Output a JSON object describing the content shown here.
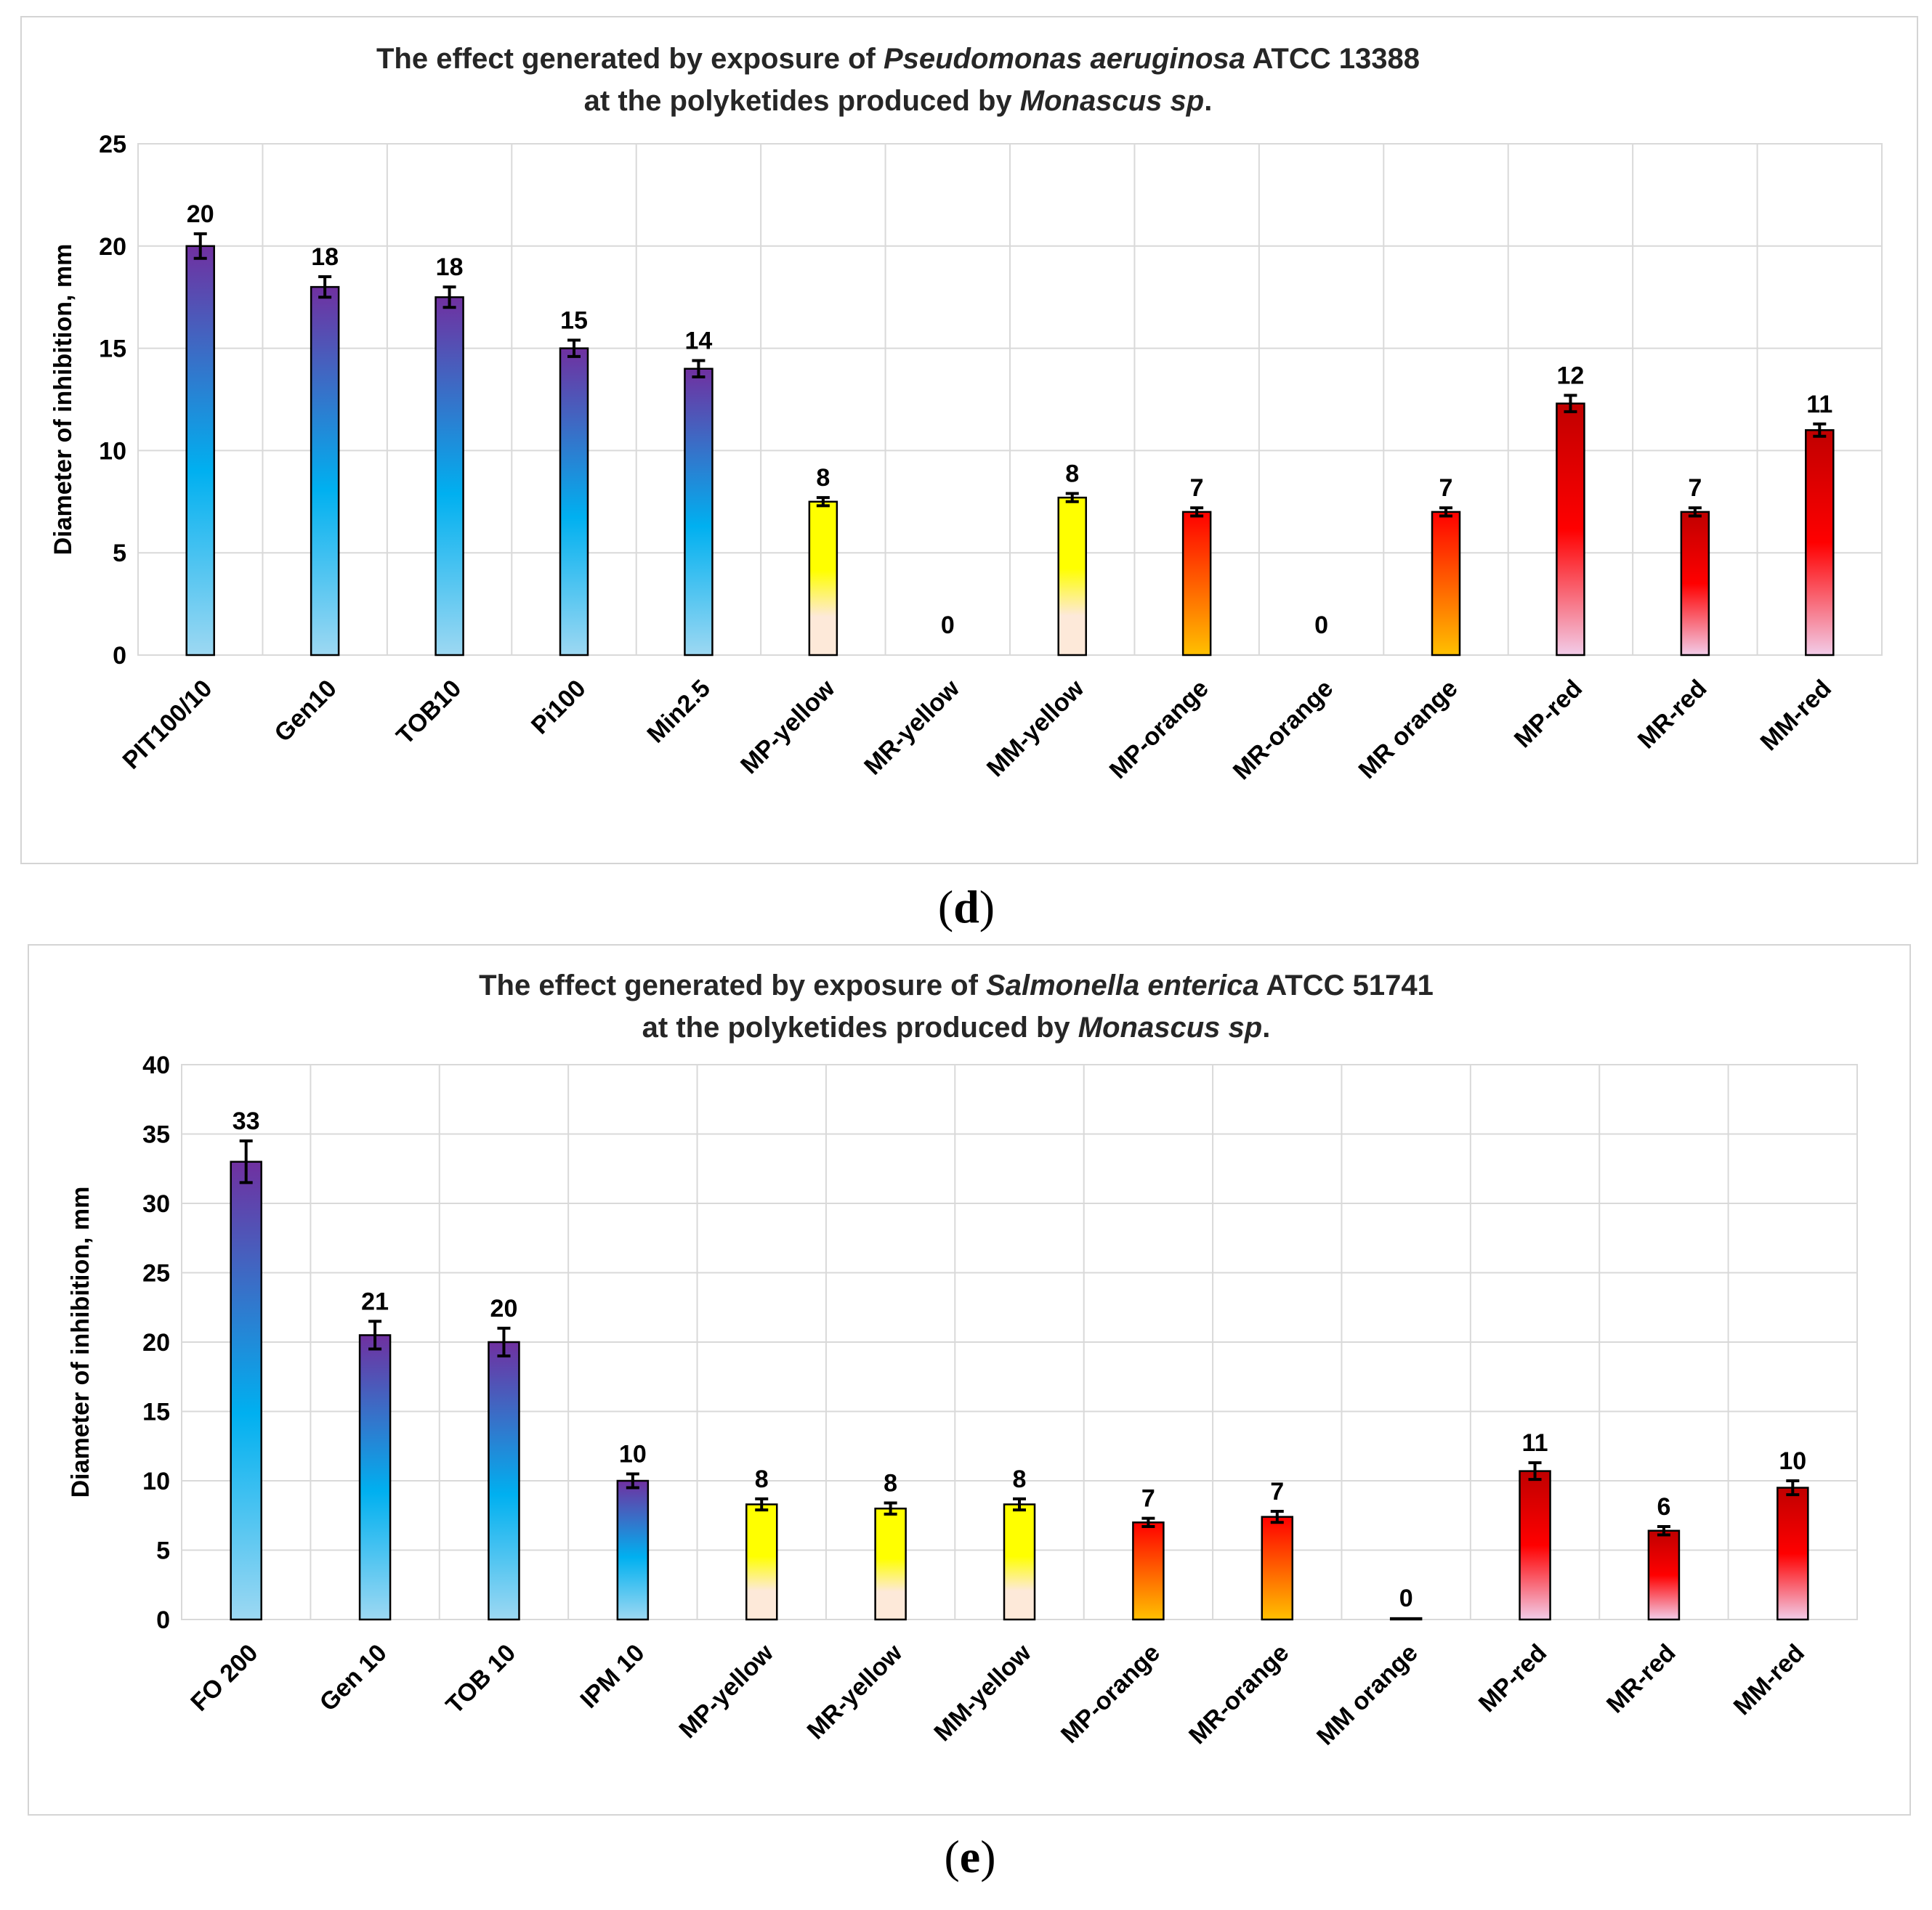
{
  "figure": {
    "caption_d": "d",
    "caption_e": "e"
  },
  "colors": {
    "antibiotic_top": "#7030a0",
    "antibiotic_mid": "#00b0f0",
    "antibiotic_bottom": "#9dd8f2",
    "yellow_top": "#ffff00",
    "yellow_bottom": "#fde9d9",
    "orange_top": "#ff0000",
    "orange_bottom": "#ffc000",
    "red_top": "#c00000",
    "red_mid": "#ff0000",
    "red_bottom": "#f2cce8"
  },
  "chart_data": [
    {
      "type": "bar",
      "title_parts": [
        {
          "text": "The effect generated by exposure of ",
          "italic": false
        },
        {
          "text": "Pseudomonas aeruginosa",
          "italic": true
        },
        {
          "text": " ATCC 13388",
          "italic": false
        }
      ],
      "title_line2_parts": [
        {
          "text": "at the polyketides produced by ",
          "italic": false
        },
        {
          "text": "Monascus sp",
          "italic": true
        },
        {
          "text": ".",
          "italic": false
        }
      ],
      "ylabel": "Diameter of inhibition, mm",
      "ylim": [
        0,
        25
      ],
      "yticks": [
        0,
        5,
        10,
        15,
        20,
        25
      ],
      "grid": true,
      "categories": [
        "PIT100/10",
        "Gen10",
        "TOB10",
        "Pi100",
        "Min2.5",
        "MP-yellow",
        "MR-yellow",
        "MM-yellow",
        "MP-orange",
        "MR-orange",
        "MR orange",
        "MP-red",
        "MR-red",
        "MM-red"
      ],
      "values": [
        20,
        18,
        17.5,
        15,
        14,
        7.5,
        0,
        7.7,
        7,
        0,
        7,
        12.3,
        7,
        11
      ],
      "errors": [
        0.6,
        0.5,
        0.5,
        0.4,
        0.4,
        0.2,
        0,
        0.2,
        0.2,
        0,
        0.2,
        0.4,
        0.2,
        0.3
      ],
      "data_labels": [
        "20",
        "18",
        "18",
        "15",
        "14",
        "8",
        "0",
        "8",
        "7",
        "0",
        "7",
        "12",
        "7",
        "11"
      ],
      "color_groups": [
        "antibiotic",
        "antibiotic",
        "antibiotic",
        "antibiotic",
        "antibiotic",
        "yellow",
        "yellow",
        "yellow",
        "orange",
        "orange",
        "orange",
        "red",
        "red",
        "red"
      ]
    },
    {
      "type": "bar",
      "title_parts": [
        {
          "text": "The effect generated by exposure of ",
          "italic": false
        },
        {
          "text": "Salmonella enterica",
          "italic": true
        },
        {
          "text": " ATCC 51741",
          "italic": false
        }
      ],
      "title_line2_parts": [
        {
          "text": "at the polyketides produced by ",
          "italic": false
        },
        {
          "text": "Monascus sp",
          "italic": true
        },
        {
          "text": ".",
          "italic": false
        }
      ],
      "ylabel": "Diameter of inhibition, mm",
      "ylim": [
        0,
        40
      ],
      "yticks": [
        0,
        5,
        10,
        15,
        20,
        25,
        30,
        35,
        40
      ],
      "grid": true,
      "categories": [
        "FO 200",
        "Gen 10",
        "TOB 10",
        "IPM 10",
        "MP-yellow",
        "MR-yellow",
        "MM-yellow",
        "MP-orange",
        "MR-orange",
        "MM orange",
        "MP-red",
        "MR-red",
        "MM-red"
      ],
      "values": [
        33,
        20.5,
        20,
        10,
        8.3,
        8,
        8.3,
        7,
        7.4,
        0.1,
        10.7,
        6.4,
        9.5
      ],
      "errors": [
        1.5,
        1.0,
        1.0,
        0.5,
        0.4,
        0.4,
        0.4,
        0.3,
        0.4,
        0,
        0.6,
        0.3,
        0.5
      ],
      "data_labels": [
        "33",
        "21",
        "20",
        "10",
        "8",
        "8",
        "8",
        "7",
        "7",
        "0",
        "11",
        "6",
        "10"
      ],
      "color_groups": [
        "antibiotic",
        "antibiotic",
        "antibiotic",
        "antibiotic",
        "yellow",
        "yellow",
        "yellow",
        "orange",
        "orange",
        "orange",
        "red",
        "red",
        "red"
      ]
    }
  ]
}
